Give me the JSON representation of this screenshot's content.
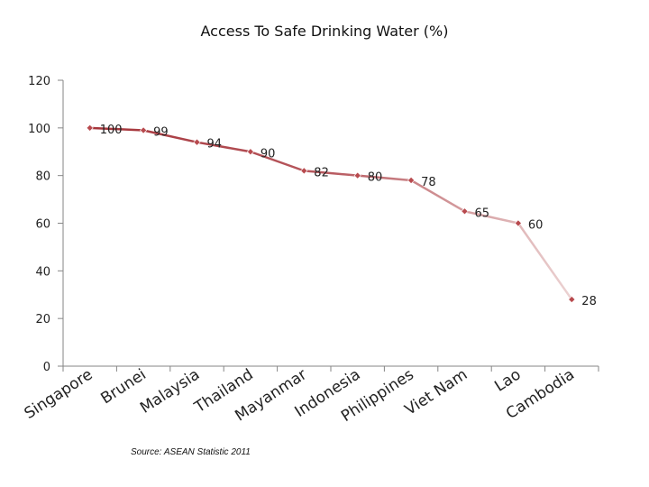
{
  "chart_data": {
    "type": "line",
    "title": "Access To Safe Drinking Water (%)",
    "categories": [
      "Singapore",
      "Brunei",
      "Malaysia",
      "Thailand",
      "Mayanmar",
      "Indonesia",
      "Philippines",
      "Viet Nam",
      "Lao",
      "Cambodia"
    ],
    "series": [
      {
        "name": "Access To Safe Drinking Water (%)",
        "values": [
          100,
          99,
          94,
          90,
          82,
          80,
          78,
          65,
          60,
          28
        ]
      }
    ],
    "y_ticks": [
      "0",
      "20",
      "40",
      "60",
      "80",
      "100",
      "120"
    ],
    "ylim": [
      0,
      120
    ],
    "xlabel": "",
    "ylabel": "",
    "grid": false,
    "colors": {
      "line_start": "#a5343a",
      "line_end": "#ecd3d3",
      "marker": "#b84a4e",
      "axis": "#868686"
    },
    "source": "Source: ASEAN Statistic 2011"
  }
}
